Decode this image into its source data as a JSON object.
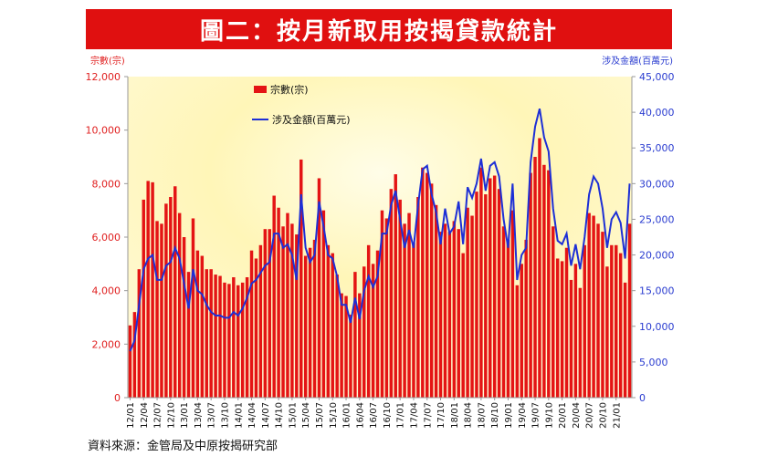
{
  "title": "圖二：按月新取用按揭貸款統計",
  "source": "資料來源：金管局及中原按揭研究部",
  "colors": {
    "bar": "#e41414",
    "line": "#1d2fd6",
    "left_axis": "#e02020",
    "right_axis": "#2a3cd0",
    "title_bg": "#e01010"
  },
  "chart_data": {
    "type": "bar",
    "title": "",
    "ylabel_left": "宗數(宗)",
    "ylabel_right": "涉及金額(百萬元)",
    "ylim_left": [
      0,
      12000
    ],
    "ylim_right": [
      0,
      45000
    ],
    "yticks_left": [
      "0",
      "2,000",
      "4,000",
      "6,000",
      "8,000",
      "10,000",
      "12,000"
    ],
    "yticks_right": [
      "0",
      "5,000",
      "10,000",
      "15,000",
      "20,000",
      "25,000",
      "30,000",
      "35,000",
      "40,000",
      "45,000"
    ],
    "legend_position": "top-left",
    "grid": false,
    "x_tick_labels": [
      "12/01",
      "12/04",
      "12/07",
      "12/10",
      "13/01",
      "13/04",
      "13/07",
      "13/10",
      "14/01",
      "14/04",
      "14/07",
      "14/10",
      "15/01",
      "15/04",
      "15/07",
      "15/10",
      "16/01",
      "16/04",
      "16/07",
      "16/10",
      "17/01",
      "17/04",
      "17/07",
      "17/10",
      "18/01",
      "18/04",
      "18/07",
      "18/10",
      "19/01",
      "19/04",
      "19/07",
      "19/10",
      "20/01",
      "20/04",
      "20/07",
      "20/10",
      "21/01"
    ],
    "series": [
      {
        "name": "宗數(宗)",
        "axis": "left",
        "type": "bar",
        "values": [
          2700,
          3200,
          4800,
          7400,
          8100,
          8050,
          6600,
          6500,
          7250,
          7500,
          7900,
          6900,
          6000,
          4700,
          6700,
          5500,
          5300,
          4800,
          4800,
          4600,
          4550,
          4300,
          4250,
          4500,
          4200,
          4300,
          4500,
          5500,
          5200,
          5700,
          6300,
          6300,
          7550,
          7100,
          6400,
          6900,
          6500,
          6100,
          8900,
          5300,
          5600,
          5900,
          8200,
          7000,
          5700,
          5400,
          4600,
          3900,
          3800,
          3100,
          4700,
          3900,
          4900,
          5700,
          5000,
          5500,
          7000,
          6700,
          7800,
          8350,
          7400,
          6500,
          6900,
          5800,
          7500,
          8600,
          8400,
          8000,
          7200,
          6200,
          6500,
          6200,
          6600,
          6300,
          5400,
          7100,
          6800,
          7700,
          8600,
          7600,
          8200,
          8300,
          7800,
          6400,
          5900,
          7000,
          4200,
          5000,
          5900,
          8400,
          9000,
          9700,
          8700,
          8500,
          6400,
          5200,
          5100,
          5600,
          4400,
          5000,
          4100,
          5700,
          6900,
          6800,
          6500,
          6200,
          4900,
          5700,
          5700,
          5400,
          4300,
          6500
        ]
      },
      {
        "name": "涉及金額(百萬元)",
        "axis": "right",
        "type": "line",
        "values": [
          6500,
          8000,
          13000,
          18000,
          19500,
          20000,
          16500,
          16500,
          18500,
          19000,
          21000,
          19500,
          16000,
          12500,
          18000,
          15000,
          14500,
          13000,
          12000,
          11500,
          11500,
          11200,
          11200,
          12000,
          11500,
          12500,
          14000,
          16000,
          16500,
          17500,
          18500,
          19000,
          23000,
          23000,
          21000,
          21500,
          20000,
          16500,
          28500,
          21000,
          19000,
          20000,
          27500,
          24000,
          20000,
          19500,
          17000,
          13000,
          13000,
          10500,
          14000,
          11000,
          15000,
          17000,
          15500,
          17000,
          23000,
          23000,
          27000,
          29000,
          25000,
          21000,
          23500,
          21000,
          27000,
          32000,
          32500,
          28500,
          26000,
          21500,
          26500,
          23000,
          24000,
          27500,
          21500,
          29500,
          28000,
          30000,
          33500,
          29000,
          32500,
          33000,
          31000,
          25000,
          21000,
          30000,
          16500,
          20000,
          21000,
          33000,
          38000,
          40500,
          36500,
          34500,
          26500,
          22000,
          21500,
          23000,
          18500,
          21500,
          18000,
          22500,
          28500,
          31000,
          30000,
          26500,
          21000,
          25000,
          26000,
          24500,
          19500,
          30000
        ]
      }
    ]
  }
}
